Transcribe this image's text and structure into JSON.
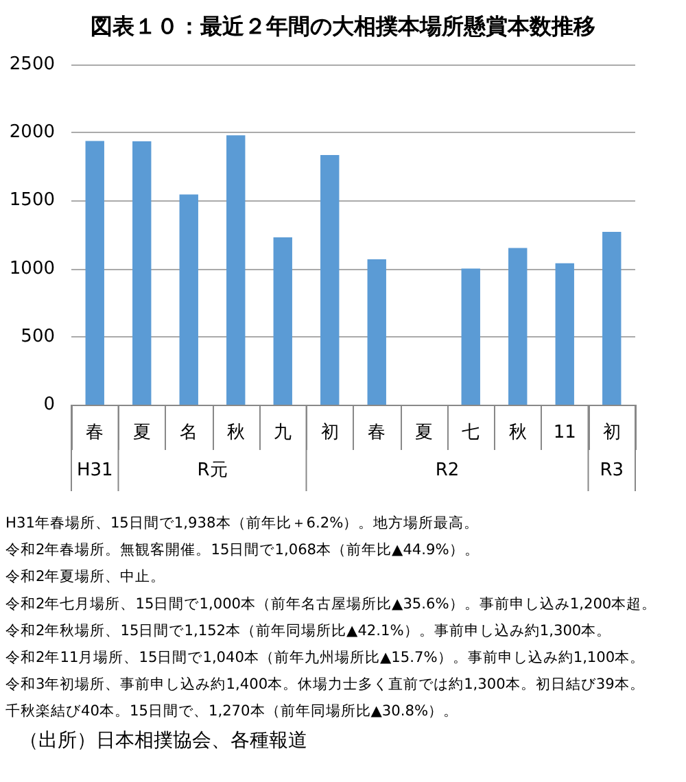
{
  "chart_data": {
    "type": "bar",
    "title": "図表１０：最近２年間の大相撲本場所懸賞本数推移",
    "categories": [
      "春",
      "夏",
      "名",
      "秋",
      "九",
      "初",
      "春",
      "夏",
      "七",
      "秋",
      "11",
      "初"
    ],
    "values": [
      1938,
      1935,
      1545,
      1980,
      1230,
      1835,
      1068,
      null,
      1000,
      1152,
      1040,
      1270
    ],
    "color": "#5b9bd5",
    "ylim": [
      0,
      2500
    ],
    "yticks": [
      0,
      500,
      1000,
      1500,
      2000,
      2500
    ],
    "grid": "y",
    "annotations": [
      "H31",
      "R元",
      "R2",
      "R3",
      "H31年春場所、15日間で1,938本（前年比＋6.2%）。地方場所最高。",
      "令和2年春場所。無観客開催。15日間で1,068本（前年比▲44.9%）。",
      "令和2年夏場所、中止。",
      "令和2年七月場所、15日間で1,000本（前年名古屋場所比▲35.6%）。事前申し込み1,200本超。",
      "令和2年秋場所、15日間で1,152本（前年同場所比▲42.1%）。事前申し込み約1,300本。",
      "令和2年11月場所、15日間で1,040本（前年九州場所比▲15.7%）。事前申し込み約1,100本。",
      "令和3年初場所、事前申し込み約1,400本。休場力士多く直前では約1,300本。初日結び39本。",
      "千秋楽結び40本。15日間で、1,270本（前年同場所比▲30.8%）。",
      "（出所）日本相撲協会、各種報道"
    ]
  }
}
